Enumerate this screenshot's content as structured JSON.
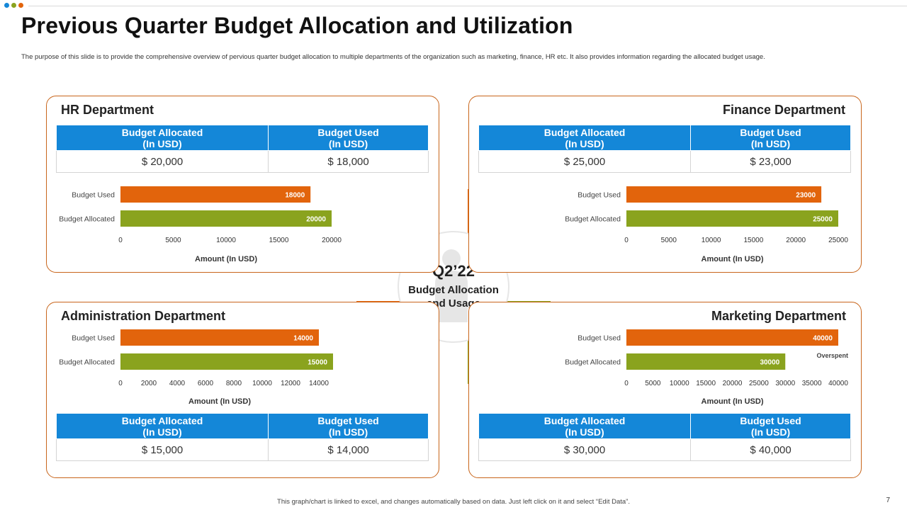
{
  "header": {
    "title": "Previous Quarter Budget Allocation and Utilization",
    "description": "The purpose of this slide is to provide the comprehensive overview of pervious quarter budget allocation to multiple  departments of the organization such as marketing,  finance, HR etc. It also provides information regarding the allocated budget usage."
  },
  "center": {
    "quarter": "Q2’22",
    "label": "Budget Allocation\nand Usage"
  },
  "colors": {
    "used": "#e2640c",
    "allocated": "#8aa31e",
    "header_blue": "#1487d8",
    "border": "#c8651b"
  },
  "departments": {
    "hr": {
      "title": "HR Department",
      "table": {
        "h1": "Budget Allocated\n(In USD)",
        "h2": "Budget Used\n(In USD)",
        "v1": "$ 20,000",
        "v2": "$ 18,000"
      }
    },
    "finance": {
      "title": "Finance Department",
      "table": {
        "h1": "Budget Allocated\n(In USD)",
        "h2": "Budget Used\n(In USD)",
        "v1": "$ 25,000",
        "v2": "$ 23,000"
      }
    },
    "admin": {
      "title": "Administration Department",
      "table": {
        "h1": "Budget Allocated\n(In USD)",
        "h2": "Budget Used\n(In USD)",
        "v1": "$ 15,000",
        "v2": "$ 14,000"
      }
    },
    "marketing": {
      "title": "Marketing Department",
      "table": {
        "h1": "Budget Allocated\n(In USD)",
        "h2": "Budget Used\n(In USD)",
        "v1": "$ 30,000",
        "v2": "$ 40,000"
      }
    }
  },
  "chart_data": [
    {
      "id": "hr",
      "type": "bar",
      "orientation": "horizontal",
      "title": "HR Department",
      "categories": [
        "Budget Used",
        "Budget Allocated"
      ],
      "values": [
        18000,
        20000
      ],
      "data_labels": [
        "18000",
        "20000"
      ],
      "xlabel": "Amount (In USD)",
      "ylabel": "",
      "xlim": [
        0,
        20000
      ],
      "ticks": [
        0,
        5000,
        10000,
        15000,
        20000
      ],
      "tick_labels": [
        "0",
        "5000",
        "10000",
        "15000",
        "20000"
      ]
    },
    {
      "id": "finance",
      "type": "bar",
      "orientation": "horizontal",
      "title": "Finance Department",
      "categories": [
        "Budget Used",
        "Budget Allocated"
      ],
      "values": [
        23000,
        25000
      ],
      "data_labels": [
        "23000",
        "25000"
      ],
      "xlabel": "Amount (In USD)",
      "ylabel": "",
      "xlim": [
        0,
        25000
      ],
      "ticks": [
        0,
        5000,
        10000,
        15000,
        20000,
        25000
      ],
      "tick_labels": [
        "0",
        "5000",
        "10000",
        "15000",
        "20000",
        "25000"
      ]
    },
    {
      "id": "admin",
      "type": "bar",
      "orientation": "horizontal",
      "title": "Administration Department",
      "categories": [
        "Budget Used",
        "Budget Allocated"
      ],
      "values": [
        14000,
        15000
      ],
      "data_labels": [
        "14000",
        "15000"
      ],
      "xlabel": "Amount (In USD)",
      "ylabel": "",
      "xlim": [
        0,
        14000
      ],
      "ticks": [
        0,
        2000,
        4000,
        6000,
        8000,
        10000,
        12000,
        14000
      ],
      "tick_labels": [
        "0",
        "2000",
        "4000",
        "6000",
        "8000",
        "10000",
        "12000",
        "14000"
      ]
    },
    {
      "id": "marketing",
      "type": "bar",
      "orientation": "horizontal",
      "title": "Marketing Department",
      "categories": [
        "Budget Used",
        "Budget Allocated"
      ],
      "values": [
        40000,
        30000
      ],
      "data_labels": [
        "40000",
        "30000"
      ],
      "xlabel": "Amount (In USD)",
      "ylabel": "",
      "xlim": [
        0,
        40000
      ],
      "ticks": [
        0,
        5000,
        10000,
        15000,
        20000,
        25000,
        30000,
        35000,
        40000
      ],
      "tick_labels": [
        "0",
        "5000",
        "10000",
        "15000",
        "20000",
        "25000",
        "30000",
        "35000",
        "40000"
      ],
      "annotation": "Overspent"
    }
  ],
  "footer": {
    "note": "This graph/chart is linked to excel, and changes automatically based on data. Just left click on it and select “Edit Data”.",
    "page_number": "7"
  }
}
